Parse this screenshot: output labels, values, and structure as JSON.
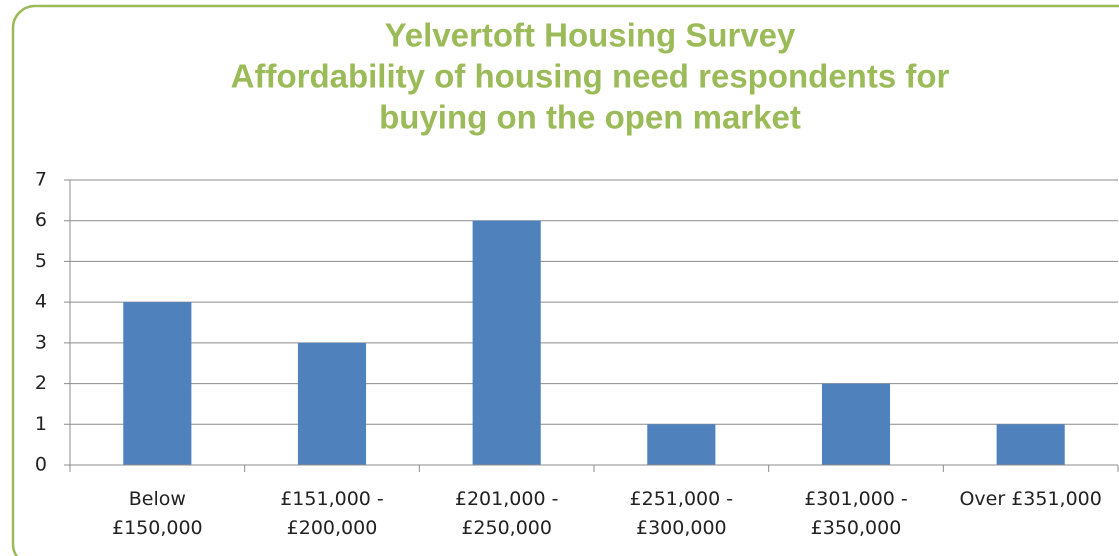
{
  "chart_data": {
    "type": "bar",
    "title": [
      "Yelvertoft Housing Survey",
      "Affordability of housing need respondents for",
      "buying on the open market"
    ],
    "categories": [
      "Below\n£150,000",
      "£151,000 -\n£200,000",
      "£201,000 -\n£250,000",
      "£251,000 -\n£300,000",
      "£301,000 -\n£350,000",
      "Over £351,000"
    ],
    "values": [
      4,
      3,
      6,
      1,
      2,
      1
    ],
    "color": "#4f81bd",
    "ylim": [
      0,
      7
    ],
    "yticks": [
      0,
      1,
      2,
      3,
      4,
      5,
      6,
      7
    ],
    "grid": true
  }
}
